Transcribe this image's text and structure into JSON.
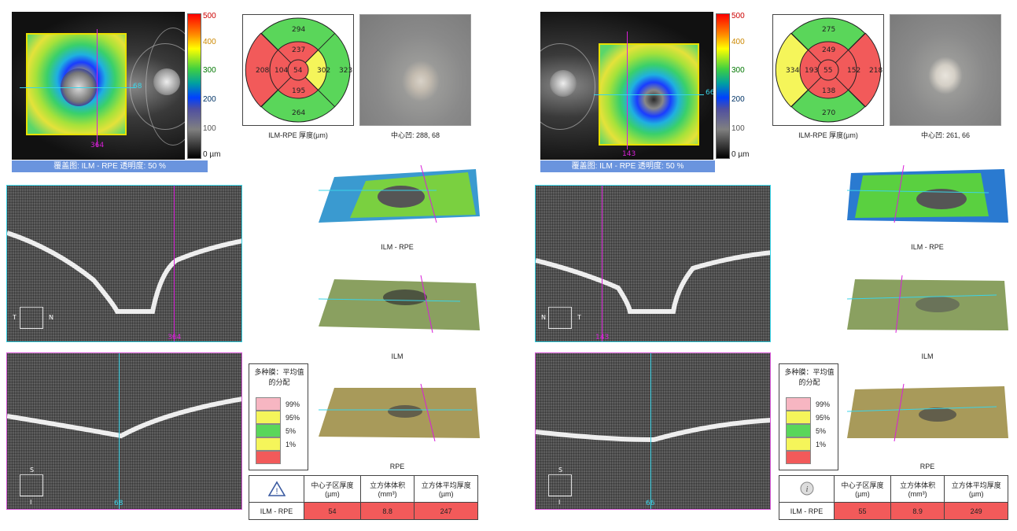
{
  "left": {
    "fundus_scale": {
      "max_label": "500",
      "l400": "400",
      "l300": "300",
      "l200": "200",
      "l100": "100",
      "min_label": "0 µm"
    },
    "fundus_marker_h": "68",
    "fundus_marker_v": "364",
    "banner": "覆盖图: ILM - RPE 透明度: 50 %",
    "etdrs": {
      "outer_top": "294",
      "outer_left": "208",
      "outer_right": "323",
      "outer_bottom": "264",
      "inner_top": "237",
      "inner_left": "104",
      "inner_right": "302",
      "inner_bottom": "195",
      "center": "54"
    },
    "etdrs_caption": "ILM-RPE 厚度(µm)",
    "photo_caption": "中心凹: 288, 68",
    "render_captions": [
      "ILM - RPE",
      "ILM",
      "RPE"
    ],
    "bscan1": {
      "orient_a": "T",
      "orient_b": "N",
      "marker": "364"
    },
    "bscan2": {
      "orient_a": "S",
      "orient_b": "I",
      "marker": "68"
    },
    "legend_title": "多种膜：平均值的分配",
    "legend_items": [
      "99%",
      "95%",
      "5%",
      "1%"
    ],
    "table": {
      "h1": "中心子区厚度(µm)",
      "h2": "立方体体积(mm³)",
      "h3": "立方体平均厚度(µm)",
      "row_label": "ILM - RPE",
      "v1": "54",
      "v2": "8.8",
      "v3": "247"
    }
  },
  "right": {
    "fundus_scale": {
      "max_label": "500",
      "l400": "400",
      "l300": "300",
      "l200": "200",
      "l100": "100",
      "min_label": "0 µm"
    },
    "fundus_marker_h": "66",
    "fundus_marker_v": "143",
    "banner": "覆盖图: ILM - RPE 透明度: 50 %",
    "etdrs": {
      "outer_top": "275",
      "outer_left": "334",
      "outer_right": "218",
      "outer_bottom": "270",
      "inner_top": "249",
      "inner_left": "193",
      "inner_right": "152",
      "inner_bottom": "138",
      "center": "55"
    },
    "etdrs_caption": "ILM-RPE 厚度(µm)",
    "photo_caption": "中心凹: 261, 66",
    "render_captions": [
      "ILM - RPE",
      "ILM",
      "RPE"
    ],
    "bscan1": {
      "orient_a": "N",
      "orient_b": "T",
      "marker": "143"
    },
    "bscan2": {
      "orient_a": "S",
      "orient_b": "I",
      "marker": "66"
    },
    "legend_title": "多种膜：平均值的分配",
    "legend_items": [
      "99%",
      "95%",
      "5%",
      "1%"
    ],
    "table": {
      "h1": "中心子区厚度(µm)",
      "h2": "立方体体积(mm³)",
      "h3": "立方体平均厚度(µm)",
      "row_label": "ILM - RPE",
      "v1": "55",
      "v2": "8.9",
      "v3": "249"
    }
  },
  "colors": {
    "red": "#f25a5a",
    "yellow": "#f5f55a",
    "green": "#5ad65a",
    "pink": "#f7b6c2",
    "magenta": "#d81fd8",
    "cyan": "#3ad4e8",
    "banner": "#6a94de"
  }
}
